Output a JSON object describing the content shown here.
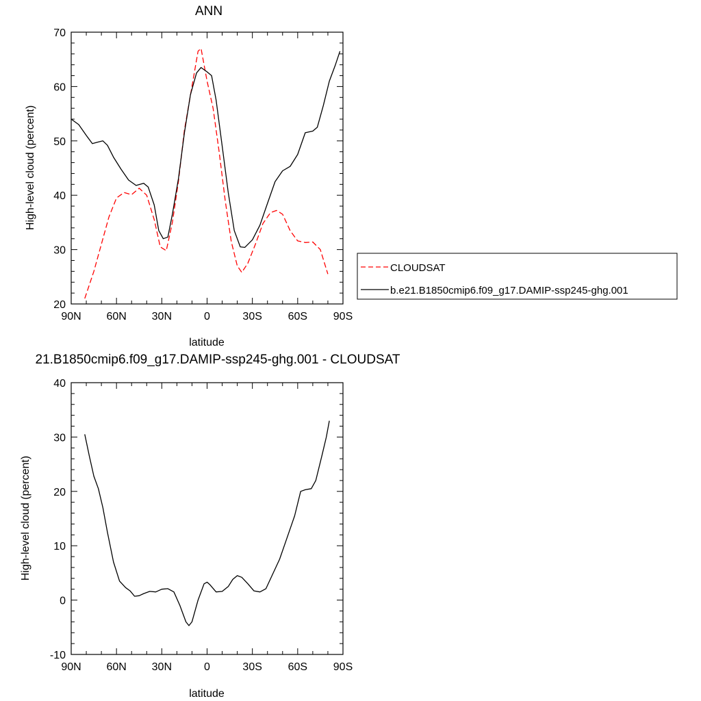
{
  "chart_data": [
    {
      "type": "line",
      "title": "ANN",
      "xlabel": "latitude",
      "ylabel": "High-level cloud (percent)",
      "xlim": [
        90,
        -90
      ],
      "ylim": [
        20,
        70
      ],
      "x_ticks": [
        90,
        60,
        30,
        0,
        -30,
        -60,
        -90
      ],
      "x_tick_labels": [
        "90N",
        "60N",
        "30N",
        "0",
        "30S",
        "60S",
        "90S"
      ],
      "y_ticks": [
        20,
        30,
        40,
        50,
        60,
        70
      ],
      "y_tick_labels": [
        "20",
        "30",
        "40",
        "50",
        "60",
        "70"
      ],
      "legend_position": "right",
      "series": [
        {
          "name": "CLOUDSAT",
          "color": "#ff0000",
          "dash": true,
          "points": [
            [
              81,
              21
            ],
            [
              75,
              26
            ],
            [
              70,
              31
            ],
            [
              65,
              36
            ],
            [
              60,
              39.5
            ],
            [
              55,
              40.5
            ],
            [
              50,
              40.1
            ],
            [
              45,
              41.3
            ],
            [
              40,
              40
            ],
            [
              35,
              35.5
            ],
            [
              31,
              30.5
            ],
            [
              27,
              29.8
            ],
            [
              23,
              35
            ],
            [
              19,
              42.5
            ],
            [
              15,
              52
            ],
            [
              10,
              60
            ],
            [
              6,
              66.5
            ],
            [
              4,
              67
            ],
            [
              0,
              61
            ],
            [
              -4,
              56
            ],
            [
              -8,
              48
            ],
            [
              -12,
              39
            ],
            [
              -16,
              31.5
            ],
            [
              -20,
              27
            ],
            [
              -23,
              25.8
            ],
            [
              -27,
              27.5
            ],
            [
              -32,
              31
            ],
            [
              -37,
              34.8
            ],
            [
              -42,
              36.8
            ],
            [
              -46,
              37.2
            ],
            [
              -50,
              36.5
            ],
            [
              -55,
              33.5
            ],
            [
              -60,
              31.6
            ],
            [
              -65,
              31.3
            ],
            [
              -70,
              31.4
            ],
            [
              -75,
              30
            ],
            [
              -80,
              25.5
            ]
          ]
        },
        {
          "name": "b.e21.B1850cmip6.f09_g17.DAMIP-ssp245-ghg.001",
          "color": "#000000",
          "dash": false,
          "points": [
            [
              90,
              54
            ],
            [
              85,
              53
            ],
            [
              80,
              51
            ],
            [
              76,
              49.5
            ],
            [
              72,
              49.8
            ],
            [
              69,
              50
            ],
            [
              66,
              49.2
            ],
            [
              62,
              47
            ],
            [
              57,
              44.8
            ],
            [
              52,
              42.8
            ],
            [
              47,
              41.8
            ],
            [
              42,
              42.2
            ],
            [
              39,
              41.5
            ],
            [
              35,
              38.2
            ],
            [
              32,
              33.5
            ],
            [
              29,
              32
            ],
            [
              26,
              32.3
            ],
            [
              23,
              36.5
            ],
            [
              19,
              43
            ],
            [
              15,
              51.5
            ],
            [
              11,
              58.5
            ],
            [
              7,
              62.5
            ],
            [
              4,
              63.5
            ],
            [
              0,
              62.7
            ],
            [
              -3,
              62
            ],
            [
              -6,
              57.5
            ],
            [
              -10,
              49
            ],
            [
              -14,
              40.5
            ],
            [
              -18,
              33.5
            ],
            [
              -22,
              30.5
            ],
            [
              -25,
              30.4
            ],
            [
              -30,
              31.8
            ],
            [
              -35,
              34.5
            ],
            [
              -40,
              38.5
            ],
            [
              -45,
              42.5
            ],
            [
              -50,
              44.5
            ],
            [
              -55,
              45.3
            ],
            [
              -60,
              47.5
            ],
            [
              -65,
              51.5
            ],
            [
              -70,
              51.8
            ],
            [
              -73,
              52.5
            ],
            [
              -77,
              56.5
            ],
            [
              -81,
              61
            ],
            [
              -85,
              64
            ],
            [
              -88,
              66.5
            ]
          ]
        }
      ]
    },
    {
      "type": "line",
      "title": "21.B1850cmip6.f09_g17.DAMIP-ssp245-ghg.001 - CLOUDSAT",
      "xlabel": "latitude",
      "ylabel": "High-level cloud (percent)",
      "xlim": [
        90,
        -90
      ],
      "ylim": [
        -10,
        40
      ],
      "x_ticks": [
        90,
        60,
        30,
        0,
        -30,
        -60,
        -90
      ],
      "x_tick_labels": [
        "90N",
        "60N",
        "30N",
        "0",
        "30S",
        "60S",
        "90S"
      ],
      "y_ticks": [
        -10,
        0,
        10,
        20,
        30,
        40
      ],
      "y_tick_labels": [
        "-10",
        "0",
        "10",
        "20",
        "30",
        "40"
      ],
      "series": [
        {
          "color": "#000000",
          "dash": false,
          "points": [
            [
              81,
              30.5
            ],
            [
              78,
              26.5
            ],
            [
              75,
              22.8
            ],
            [
              72,
              20.5
            ],
            [
              69,
              17
            ],
            [
              66,
              12.5
            ],
            [
              62,
              7
            ],
            [
              58,
              3.5
            ],
            [
              54,
              2.3
            ],
            [
              51,
              1.7
            ],
            [
              48,
              0.7
            ],
            [
              45,
              0.8
            ],
            [
              42,
              1.2
            ],
            [
              38,
              1.6
            ],
            [
              34,
              1.5
            ],
            [
              30,
              2
            ],
            [
              26,
              2.1
            ],
            [
              22,
              1.5
            ],
            [
              18,
              -1
            ],
            [
              14,
              -4
            ],
            [
              12,
              -4.7
            ],
            [
              10,
              -4
            ],
            [
              6,
              0
            ],
            [
              2,
              3
            ],
            [
              0,
              3.3
            ],
            [
              -2,
              2.8
            ],
            [
              -6,
              1.5
            ],
            [
              -10,
              1.6
            ],
            [
              -14,
              2.5
            ],
            [
              -17,
              3.8
            ],
            [
              -20,
              4.5
            ],
            [
              -23,
              4.2
            ],
            [
              -27,
              3
            ],
            [
              -31,
              1.7
            ],
            [
              -35,
              1.5
            ],
            [
              -39,
              2.1
            ],
            [
              -43,
              4.5
            ],
            [
              -48,
              7.5
            ],
            [
              -53,
              11.5
            ],
            [
              -58,
              15.5
            ],
            [
              -62,
              20
            ],
            [
              -65,
              20.3
            ],
            [
              -69,
              20.5
            ],
            [
              -72,
              22
            ],
            [
              -76,
              26.5
            ],
            [
              -79,
              30
            ],
            [
              -81,
              33
            ]
          ]
        }
      ]
    }
  ]
}
